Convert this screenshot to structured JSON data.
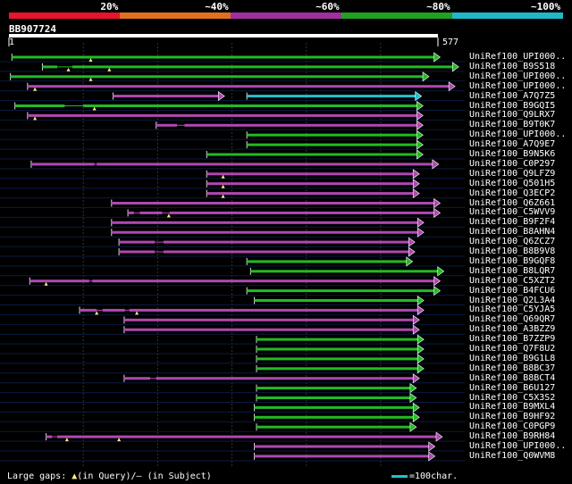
{
  "scale": {
    "labels": [
      "20%",
      "~40%",
      "~60%",
      "~80%",
      "~100%"
    ],
    "colors": [
      "#e8142c",
      "#e07020",
      "#a030a0",
      "#22a022",
      "#20b8c8"
    ]
  },
  "query": {
    "name": "BB907724",
    "start": "1",
    "end": "577",
    "length": 577
  },
  "hits": [
    {
      "name": "UniRef100_UPI000..",
      "color": "green",
      "start": 4,
      "end": 580,
      "gaps": [],
      "q_gaps": [
        110
      ]
    },
    {
      "name": "UniRef100_B9S518",
      "color": "green",
      "start": 45,
      "end": 605,
      "gaps": [
        [
          65,
          85
        ]
      ],
      "q_gaps": [
        80,
        135
      ]
    },
    {
      "name": "UniRef100_UPI000..",
      "color": "green",
      "start": 2,
      "end": 565,
      "gaps": [],
      "q_gaps": [
        110
      ]
    },
    {
      "name": "UniRef100_UPI000..",
      "color": "magenta",
      "start": 25,
      "end": 600,
      "gaps": [],
      "q_gaps": [
        35
      ]
    },
    {
      "name": "UniRef100_A7Q7Z5",
      "color": "magenta",
      "start": 140,
      "end": 290,
      "gaps": [],
      "q_gaps": [],
      "extra": {
        "color": "cyan",
        "start": 320,
        "end": 555
      }
    },
    {
      "name": "UniRef100_B9GQI5",
      "color": "green",
      "start": 8,
      "end": 557,
      "gaps": [
        [
          75,
          100
        ]
      ],
      "q_gaps": [
        115
      ]
    },
    {
      "name": "UniRef100_Q9LRX7",
      "color": "magenta",
      "start": 25,
      "end": 557,
      "gaps": [],
      "q_gaps": [
        35
      ]
    },
    {
      "name": "UniRef100_B9T0K7",
      "color": "magenta",
      "start": 198,
      "end": 557,
      "gaps": [
        [
          226,
          236
        ]
      ],
      "q_gaps": []
    },
    {
      "name": "UniRef100_UPI000..",
      "color": "green",
      "start": 320,
      "end": 557,
      "gaps": [],
      "q_gaps": []
    },
    {
      "name": "UniRef100_A7Q9E7",
      "color": "green",
      "start": 320,
      "end": 557,
      "gaps": [],
      "q_gaps": []
    },
    {
      "name": "UniRef100_B9N5K6",
      "color": "green",
      "start": 266,
      "end": 557,
      "gaps": [],
      "q_gaps": []
    },
    {
      "name": "UniRef100_C0P297",
      "color": "magenta",
      "start": 30,
      "end": 578,
      "gaps": [
        [
          115,
          118
        ]
      ],
      "q_gaps": []
    },
    {
      "name": "UniRef100_Q9LFZ9",
      "color": "magenta",
      "start": 266,
      "end": 552,
      "gaps": [],
      "q_gaps": [
        288
      ]
    },
    {
      "name": "UniRef100_Q501H5",
      "color": "magenta",
      "start": 266,
      "end": 552,
      "gaps": [],
      "q_gaps": [
        288
      ]
    },
    {
      "name": "UniRef100_Q3ECP2",
      "color": "magenta",
      "start": 266,
      "end": 552,
      "gaps": [],
      "q_gaps": [
        288
      ]
    },
    {
      "name": "UniRef100_Q6Z661",
      "color": "magenta",
      "start": 138,
      "end": 580,
      "gaps": [],
      "q_gaps": []
    },
    {
      "name": "UniRef100_C5WVV9",
      "color": "magenta",
      "start": 160,
      "end": 580,
      "gaps": [
        [
          168,
          176
        ],
        [
          206,
          216
        ]
      ],
      "q_gaps": [
        215
      ]
    },
    {
      "name": "UniRef100_B9F2F4",
      "color": "magenta",
      "start": 138,
      "end": 558,
      "gaps": [],
      "q_gaps": []
    },
    {
      "name": "UniRef100_B8AHN4",
      "color": "magenta",
      "start": 138,
      "end": 558,
      "gaps": [],
      "q_gaps": []
    },
    {
      "name": "UniRef100_Q6ZCZ7",
      "color": "magenta",
      "start": 148,
      "end": 546,
      "gaps": [
        [
          196,
          208
        ]
      ],
      "q_gaps": []
    },
    {
      "name": "UniRef100_B8B9V8",
      "color": "magenta",
      "start": 148,
      "end": 546,
      "gaps": [
        [
          196,
          208
        ]
      ],
      "q_gaps": []
    },
    {
      "name": "UniRef100_B9GQF8",
      "color": "green",
      "start": 320,
      "end": 543,
      "gaps": [],
      "q_gaps": []
    },
    {
      "name": "UniRef100_B8LQR7",
      "color": "green",
      "start": 325,
      "end": 585,
      "gaps": [],
      "q_gaps": []
    },
    {
      "name": "UniRef100_C5XZT2",
      "color": "magenta",
      "start": 28,
      "end": 580,
      "gaps": [
        [
          108,
          112
        ]
      ],
      "q_gaps": [
        50
      ]
    },
    {
      "name": "UniRef100_B4FCU6",
      "color": "green",
      "start": 320,
      "end": 580,
      "gaps": [],
      "q_gaps": []
    },
    {
      "name": "UniRef100_Q2L3A4",
      "color": "green",
      "start": 330,
      "end": 558,
      "gaps": [],
      "q_gaps": []
    },
    {
      "name": "UniRef100_C5YJA5",
      "color": "magenta",
      "start": 95,
      "end": 558,
      "gaps": [
        [
          118,
          126
        ],
        [
          156,
          162
        ]
      ],
      "q_gaps": [
        118,
        172
      ]
    },
    {
      "name": "UniRef100_Q69QR7",
      "color": "magenta",
      "start": 155,
      "end": 552,
      "gaps": [],
      "q_gaps": []
    },
    {
      "name": "UniRef100_A3BZZ9",
      "color": "magenta",
      "start": 155,
      "end": 552,
      "gaps": [],
      "q_gaps": []
    },
    {
      "name": "UniRef100_B7ZZP9",
      "color": "green",
      "start": 333,
      "end": 558,
      "gaps": [],
      "q_gaps": []
    },
    {
      "name": "UniRef100_Q7F8U2",
      "color": "green",
      "start": 333,
      "end": 558,
      "gaps": [],
      "q_gaps": []
    },
    {
      "name": "UniRef100_B9G1L8",
      "color": "green",
      "start": 333,
      "end": 558,
      "gaps": [],
      "q_gaps": []
    },
    {
      "name": "UniRef100_B8BC37",
      "color": "green",
      "start": 333,
      "end": 558,
      "gaps": [],
      "q_gaps": []
    },
    {
      "name": "UniRef100_B8BCT4",
      "color": "magenta",
      "start": 155,
      "end": 552,
      "gaps": [
        [
          190,
          198
        ]
      ],
      "q_gaps": []
    },
    {
      "name": "UniRef100_B6U127",
      "color": "green",
      "start": 333,
      "end": 548,
      "gaps": [],
      "q_gaps": []
    },
    {
      "name": "UniRef100_C5X3S2",
      "color": "green",
      "start": 333,
      "end": 548,
      "gaps": [],
      "q_gaps": []
    },
    {
      "name": "UniRef100_B9MXL4",
      "color": "green",
      "start": 330,
      "end": 552,
      "gaps": [],
      "q_gaps": []
    },
    {
      "name": "UniRef100_B9HF92",
      "color": "green",
      "start": 330,
      "end": 552,
      "gaps": [],
      "q_gaps": []
    },
    {
      "name": "UniRef100_C0PGP9",
      "color": "green",
      "start": 333,
      "end": 548,
      "gaps": [],
      "q_gaps": []
    },
    {
      "name": "UniRef100_B9RH84",
      "color": "magenta",
      "start": 50,
      "end": 583,
      "gaps": [
        [
          58,
          65
        ]
      ],
      "q_gaps": [
        78,
        148
      ]
    },
    {
      "name": "UniRef100_UPI000..",
      "color": "magenta",
      "start": 330,
      "end": 573,
      "gaps": [],
      "q_gaps": []
    },
    {
      "name": "UniRef100_Q0WVM8",
      "color": "magenta",
      "start": 330,
      "end": 573,
      "gaps": [],
      "q_gaps": []
    }
  ],
  "legend": {
    "prefix": "Large gaps: ",
    "query_text": "(in Query)/",
    "dash": "–",
    "subject_text": " (in Subject)",
    "scale_text": "=100char."
  },
  "palette": {
    "green": "#22bb22",
    "magenta": "#b048b0",
    "cyan": "#22c0d0",
    "triangle": "#ffe88a"
  }
}
